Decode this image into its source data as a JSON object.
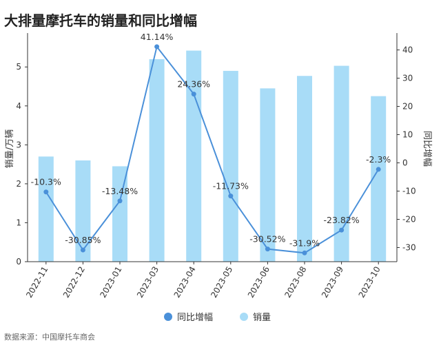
{
  "title": "大排量摩托车的销量和同比增幅",
  "source": "数据来源：中国摩托车商会",
  "colors": {
    "bar": "#a8dcf7",
    "line": "#4a90d9",
    "point": "#4a90d9",
    "axis": "#333333"
  },
  "chart_data": {
    "type": "bar+line",
    "categories": [
      "2022-11",
      "2022-12",
      "2023-01",
      "2023-03",
      "2023-04",
      "2023-05",
      "2023-06",
      "2023-08",
      "2023-09",
      "2023-10"
    ],
    "series": [
      {
        "name": "销量",
        "type": "bar",
        "axis": "left",
        "values": [
          2.7,
          2.6,
          2.45,
          5.2,
          5.42,
          4.9,
          4.45,
          4.77,
          5.03,
          4.25
        ]
      },
      {
        "name": "同比增幅",
        "type": "line",
        "axis": "right",
        "values": [
          -10.3,
          -30.85,
          -13.48,
          41.14,
          24.36,
          -11.73,
          -30.52,
          -31.9,
          -23.82,
          -2.3
        ],
        "labels": [
          "-10.3%",
          "-30.85%",
          "-13.48%",
          "41.14%",
          "24.36%",
          "-11.73%",
          "-30.52%",
          "-31.9%",
          "-23.82%",
          "-2.3%"
        ]
      }
    ],
    "ylabel_left": "销量/万辆",
    "ylabel_right": "同比增幅",
    "ylim_left": [
      0,
      5.8
    ],
    "ylim_right": [
      -35,
      45
    ],
    "yticks_left": [
      "0",
      "1",
      "2",
      "3",
      "4",
      "5"
    ],
    "yticks_right": [
      "-30",
      "-20",
      "-10",
      "0",
      "10",
      "20",
      "30",
      "40"
    ],
    "legend": [
      {
        "name": "同比增幅",
        "marker": "circle",
        "color": "#4a90d9"
      },
      {
        "name": "销量",
        "marker": "circle",
        "color": "#a8dcf7"
      }
    ],
    "legend_position": "bottom"
  }
}
